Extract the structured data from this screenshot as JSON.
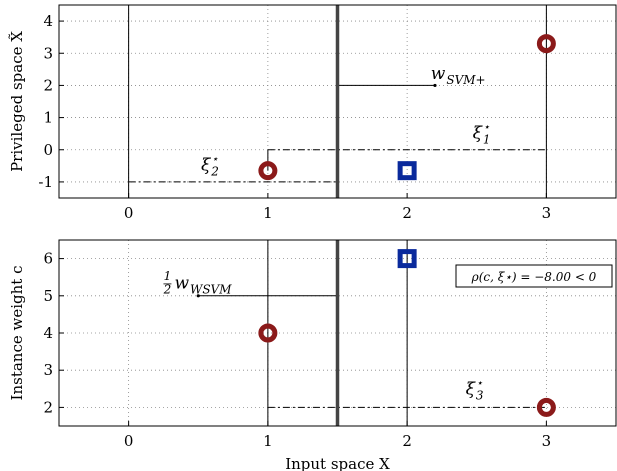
{
  "chart_data": [
    {
      "type": "scatter",
      "ylabel": "Privileged space X̃",
      "xlabel": "",
      "xlim": [
        -0.5,
        3.5
      ],
      "ylim": [
        -1.5,
        4.5
      ],
      "xticks": [
        "0",
        "1",
        "2",
        "3"
      ],
      "yticks": [
        "-1",
        "0",
        "1",
        "2",
        "3",
        "4"
      ],
      "grid": true,
      "series": [
        {
          "marker": "circle",
          "color": "#8b1a1a",
          "points": [
            {
              "x": 1,
              "y": -0.65
            },
            {
              "x": 3,
              "y": 3.3
            }
          ]
        },
        {
          "marker": "square",
          "color": "#0a2a9c",
          "points": [
            {
              "x": 2,
              "y": -0.65
            }
          ]
        }
      ],
      "annotations": {
        "w_svm_plus": {
          "base": "w",
          "sub": "SVM+"
        },
        "xi1": {
          "base": "ξ",
          "sup": "⋆",
          "sub": "1"
        },
        "xi2": {
          "base": "ξ",
          "sup": "⋆",
          "sub": "2"
        }
      }
    },
    {
      "type": "scatter",
      "ylabel": "Instance weight c",
      "xlabel": "Input space X",
      "xlim": [
        -0.5,
        3.5
      ],
      "ylim": [
        1.5,
        6.5
      ],
      "xticks": [
        "0",
        "1",
        "2",
        "3"
      ],
      "yticks": [
        "2",
        "3",
        "4",
        "5",
        "6"
      ],
      "grid": true,
      "series": [
        {
          "marker": "circle",
          "color": "#8b1a1a",
          "points": [
            {
              "x": 1,
              "y": 4
            },
            {
              "x": 3,
              "y": 2
            }
          ]
        },
        {
          "marker": "square",
          "color": "#0a2a9c",
          "points": [
            {
              "x": 2,
              "y": 6
            }
          ]
        }
      ],
      "annotations": {
        "half_w_wsvm": {
          "frac": "1/2",
          "base": "w",
          "sub": "WSVM"
        },
        "xi3": {
          "base": "ξ",
          "sup": "⋆",
          "sub": "3"
        },
        "rho_box": "ρ(c, ξ⋆) = −8.00 < 0"
      }
    }
  ]
}
